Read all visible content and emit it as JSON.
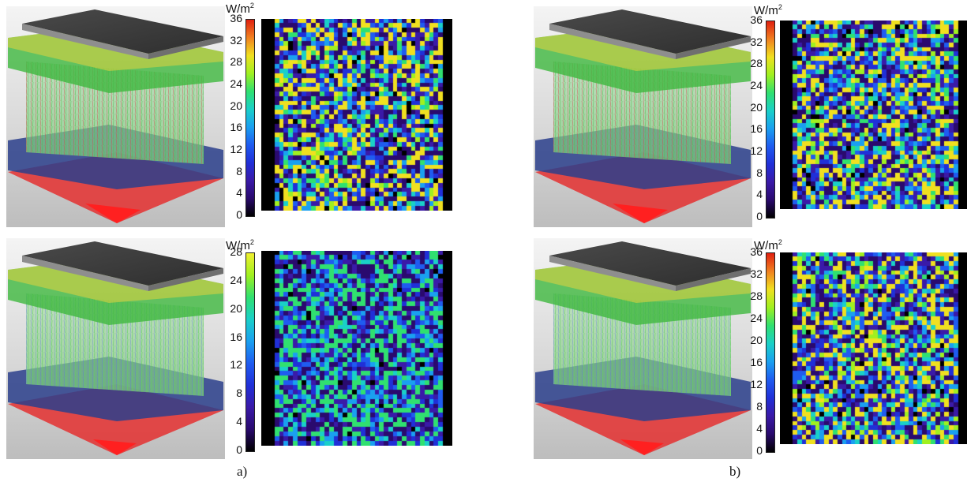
{
  "labels": {
    "a": "a)",
    "b": "b)"
  },
  "panels": [
    {
      "id": "a-top",
      "unit_base": "W/m",
      "unit_exp": "2",
      "ticks": [
        "36",
        "32",
        "28",
        "24",
        "20",
        "16",
        "12",
        "8",
        "4",
        "0"
      ],
      "max": 36,
      "palette": [
        "#000000",
        "#2a0a6e",
        "#3a1aa8",
        "#2030d8",
        "#1f5cf0",
        "#1aa0f0",
        "#1ad0c8",
        "#30e070",
        "#a0f020",
        "#f0e020",
        "#f08020",
        "#e02010"
      ]
    },
    {
      "id": "b-top",
      "unit_base": "W/m",
      "unit_exp": "2",
      "ticks": [
        "36",
        "32",
        "28",
        "24",
        "20",
        "16",
        "12",
        "8",
        "4",
        "0"
      ],
      "max": 36,
      "palette": [
        "#000000",
        "#2a0a6e",
        "#3a1aa8",
        "#2030d8",
        "#1f5cf0",
        "#1aa0f0",
        "#1ad0c8",
        "#30e070",
        "#a0f020",
        "#f0e020",
        "#f08020",
        "#e02010"
      ]
    },
    {
      "id": "a-bottom",
      "unit_base": "W/m",
      "unit_exp": "2",
      "ticks": [
        "28",
        "24",
        "20",
        "16",
        "12",
        "8",
        "4",
        "0"
      ],
      "max": 28,
      "palette": [
        "#000000",
        "#2a0a6e",
        "#3a1aa8",
        "#2030d8",
        "#1f5cf0",
        "#1aa0f0",
        "#1ad0c8",
        "#30e070",
        "#a0f020",
        "#f0f030"
      ]
    },
    {
      "id": "b-bottom",
      "unit_base": "W/m",
      "unit_exp": "2",
      "ticks": [
        "36",
        "32",
        "28",
        "24",
        "20",
        "16",
        "12",
        "8",
        "4",
        "0"
      ],
      "max": 36,
      "palette": [
        "#000000",
        "#2a0a6e",
        "#3a1aa8",
        "#2030d8",
        "#1f5cf0",
        "#1aa0f0",
        "#1ad0c8",
        "#30e070",
        "#a0f020",
        "#f0e020",
        "#f08020",
        "#e02010"
      ]
    }
  ]
}
